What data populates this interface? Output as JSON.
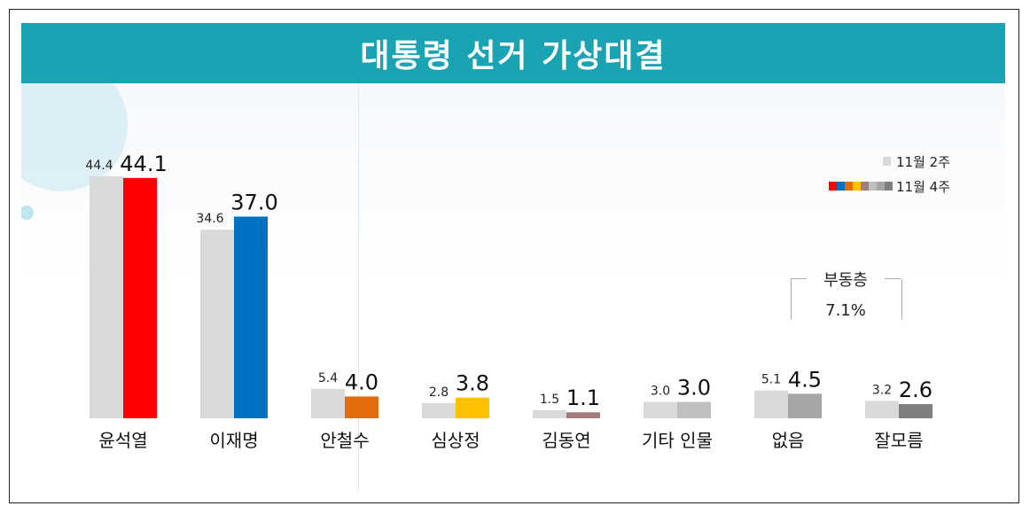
{
  "title": "대통령 선거 가상대결",
  "legend": {
    "prev_label": "11월 2주",
    "curr_label": "11월 4주"
  },
  "floating_voters": {
    "label": "부동층",
    "value": "7.1%"
  },
  "colors": {
    "header": "#1aa3b2",
    "previous": "#d9d9d9"
  },
  "chart_data": {
    "type": "bar",
    "title": "대통령 선거 가상대결",
    "categories": [
      "윤석열",
      "이재명",
      "안철수",
      "심상정",
      "김동연",
      "기타 인물",
      "없음",
      "잘모름"
    ],
    "series": [
      {
        "name": "11월 2주",
        "values": [
          44.4,
          34.6,
          5.4,
          2.8,
          1.5,
          3.0,
          5.1,
          3.2
        ],
        "color": "#d9d9d9"
      },
      {
        "name": "11월 4주",
        "values": [
          44.1,
          37.0,
          4.0,
          3.8,
          1.1,
          3.0,
          4.5,
          2.6
        ],
        "colors": [
          "#ff0000",
          "#0070c0",
          "#e36c0a",
          "#ffc000",
          "#a47b7b",
          "#bfbfbf",
          "#a6a6a6",
          "#7f7f7f"
        ]
      }
    ],
    "ylim": [
      0,
      50
    ]
  }
}
